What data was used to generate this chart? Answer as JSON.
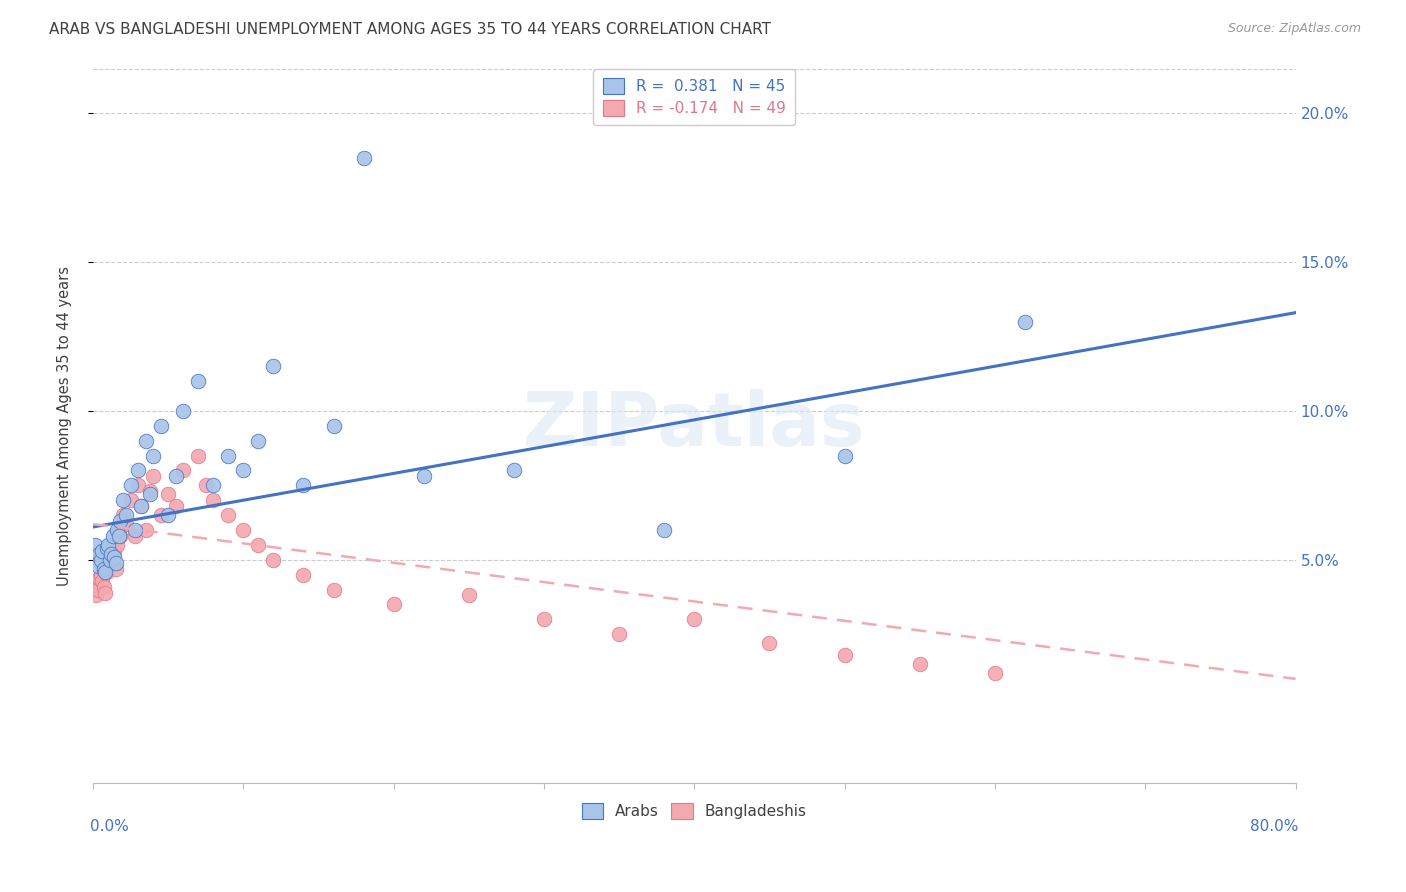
{
  "title": "ARAB VS BANGLADESHI UNEMPLOYMENT AMONG AGES 35 TO 44 YEARS CORRELATION CHART",
  "source": "Source: ZipAtlas.com",
  "ylabel": "Unemployment Among Ages 35 to 44 years",
  "xlim": [
    0.0,
    0.8
  ],
  "ylim": [
    -0.025,
    0.215
  ],
  "yticks": [
    0.05,
    0.1,
    0.15,
    0.2
  ],
  "ytick_labels": [
    "5.0%",
    "10.0%",
    "15.0%",
    "20.0%"
  ],
  "arab_R": 0.381,
  "arab_N": 45,
  "bang_R": -0.174,
  "bang_N": 49,
  "arab_color": "#a8c4e8",
  "bang_color": "#f4a8b0",
  "arab_line_color": "#4472c4",
  "bang_line_color": "#f4a8b0",
  "bang_line_edge": "#e07888",
  "watermark": "ZIPatlas",
  "background_color": "#ffffff",
  "grid_color": "#cccccc",
  "title_color": "#404040",
  "axis_label_color": "#4472c4",
  "arab_line_y0": 0.061,
  "arab_line_y1": 0.133,
  "bang_line_y0": 0.062,
  "bang_line_y1": 0.01,
  "arab_scatter_x": [
    0.001,
    0.002,
    0.003,
    0.004,
    0.005,
    0.006,
    0.007,
    0.008,
    0.009,
    0.01,
    0.011,
    0.012,
    0.013,
    0.014,
    0.015,
    0.016,
    0.017,
    0.018,
    0.02,
    0.022,
    0.025,
    0.028,
    0.03,
    0.032,
    0.035,
    0.038,
    0.04,
    0.045,
    0.05,
    0.055,
    0.06,
    0.07,
    0.08,
    0.09,
    0.1,
    0.11,
    0.12,
    0.14,
    0.16,
    0.18,
    0.22,
    0.28,
    0.38,
    0.5,
    0.62
  ],
  "arab_scatter_y": [
    0.055,
    0.05,
    0.048,
    0.052,
    0.05,
    0.053,
    0.047,
    0.046,
    0.054,
    0.055,
    0.05,
    0.052,
    0.058,
    0.051,
    0.049,
    0.06,
    0.058,
    0.063,
    0.07,
    0.065,
    0.075,
    0.06,
    0.08,
    0.068,
    0.09,
    0.072,
    0.085,
    0.095,
    0.065,
    0.078,
    0.1,
    0.11,
    0.075,
    0.085,
    0.08,
    0.09,
    0.115,
    0.075,
    0.095,
    0.185,
    0.078,
    0.08,
    0.06,
    0.085,
    0.13
  ],
  "bang_scatter_x": [
    0.001,
    0.002,
    0.003,
    0.004,
    0.005,
    0.006,
    0.007,
    0.008,
    0.009,
    0.01,
    0.011,
    0.012,
    0.013,
    0.014,
    0.015,
    0.016,
    0.017,
    0.018,
    0.02,
    0.022,
    0.025,
    0.028,
    0.03,
    0.032,
    0.035,
    0.038,
    0.04,
    0.045,
    0.05,
    0.055,
    0.06,
    0.07,
    0.075,
    0.08,
    0.09,
    0.1,
    0.11,
    0.12,
    0.14,
    0.16,
    0.2,
    0.25,
    0.3,
    0.35,
    0.4,
    0.45,
    0.5,
    0.55,
    0.6
  ],
  "bang_scatter_y": [
    0.042,
    0.038,
    0.04,
    0.044,
    0.045,
    0.043,
    0.041,
    0.039,
    0.046,
    0.048,
    0.05,
    0.051,
    0.049,
    0.053,
    0.047,
    0.055,
    0.06,
    0.058,
    0.065,
    0.062,
    0.07,
    0.058,
    0.075,
    0.068,
    0.06,
    0.073,
    0.078,
    0.065,
    0.072,
    0.068,
    0.08,
    0.085,
    0.075,
    0.07,
    0.065,
    0.06,
    0.055,
    0.05,
    0.045,
    0.04,
    0.035,
    0.038,
    0.03,
    0.025,
    0.03,
    0.022,
    0.018,
    0.015,
    0.012
  ]
}
